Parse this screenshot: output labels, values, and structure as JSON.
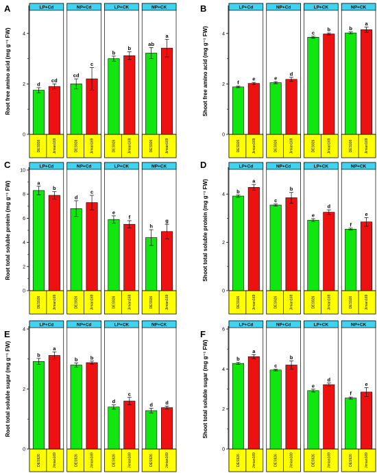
{
  "colors": {
    "header_fill": "#3fd3f0",
    "footer_fill": "#ffff00",
    "bar_colors": [
      "#11e611",
      "#ee1111"
    ],
    "bar_stroke": "#000000"
  },
  "chart_data": [
    {
      "type": "bar",
      "panel": "A",
      "ylabel": "Root free amino acid (mg g⁻¹ FW)",
      "ylim": [
        0,
        5
      ],
      "yticks": [
        0,
        2,
        4
      ],
      "groups": [
        "LP+Cd",
        "NP+Cd",
        "LP+CK",
        "NP+CK"
      ],
      "categories": [
        "DES926",
        "Jimian169"
      ],
      "values": [
        [
          1.75,
          1.9
        ],
        [
          2.0,
          2.2
        ],
        [
          3.0,
          3.12
        ],
        [
          3.22,
          3.42
        ]
      ],
      "errors": [
        [
          0.1,
          0.1
        ],
        [
          0.2,
          0.45
        ],
        [
          0.1,
          0.15
        ],
        [
          0.22,
          0.35
        ]
      ],
      "letters": [
        [
          "d",
          "cd"
        ],
        [
          "cd",
          "c"
        ],
        [
          "b",
          "b"
        ],
        [
          "ab",
          "a"
        ]
      ]
    },
    {
      "type": "bar",
      "panel": "B",
      "ylabel": "Shoot free amino acid (mg g⁻¹ FW)",
      "ylim": [
        0,
        5
      ],
      "yticks": [
        0,
        2,
        4
      ],
      "groups": [
        "LP+Cd",
        "NP+Cd",
        "LP+CK",
        "NP+CK"
      ],
      "categories": [
        "DES926",
        "Jimian169"
      ],
      "values": [
        [
          1.88,
          2.02
        ],
        [
          2.05,
          2.18
        ],
        [
          3.85,
          3.98
        ],
        [
          4.02,
          4.15
        ]
      ],
      "errors": [
        [
          0.03,
          0.04
        ],
        [
          0.04,
          0.08
        ],
        [
          0.04,
          0.04
        ],
        [
          0.04,
          0.1
        ]
      ],
      "letters": [
        [
          "f",
          "e"
        ],
        [
          "e",
          "d"
        ],
        [
          "c",
          "b"
        ],
        [
          "b",
          "a"
        ]
      ]
    },
    {
      "type": "bar",
      "panel": "C",
      "ylabel": "Root total soluble protein (mg g⁻¹ FW)",
      "ylim": [
        0,
        10
      ],
      "yticks": [
        0,
        2,
        4,
        6,
        8,
        10
      ],
      "groups": [
        "LP+Cd",
        "NP+Cd",
        "LP+CK",
        "NP+CK"
      ],
      "categories": [
        "DES926",
        "Jimian169"
      ],
      "values": [
        [
          8.3,
          7.9
        ],
        [
          6.8,
          7.3
        ],
        [
          5.9,
          5.5
        ],
        [
          4.4,
          4.9
        ]
      ],
      "errors": [
        [
          0.35,
          0.3
        ],
        [
          0.65,
          0.6
        ],
        [
          0.3,
          0.3
        ],
        [
          0.65,
          0.6
        ]
      ],
      "letters": [
        [
          "a",
          "b"
        ],
        [
          "d",
          "c"
        ],
        [
          "e",
          "f"
        ],
        [
          "h",
          "g"
        ]
      ]
    },
    {
      "type": "bar",
      "panel": "D",
      "ylabel": "Shoot total soluble protein (mg g⁻¹ FW)",
      "ylim": [
        0,
        5
      ],
      "yticks": [
        0,
        2,
        4
      ],
      "groups": [
        "LP+Cd",
        "NP+Cd",
        "LP+CK",
        "NP+CK"
      ],
      "categories": [
        "DES926",
        "Jimian169"
      ],
      "values": [
        [
          3.92,
          4.28
        ],
        [
          3.55,
          3.85
        ],
        [
          2.92,
          3.25
        ],
        [
          2.55,
          2.85
        ]
      ],
      "errors": [
        [
          0.05,
          0.12
        ],
        [
          0.04,
          0.22
        ],
        [
          0.06,
          0.1
        ],
        [
          0.04,
          0.18
        ]
      ],
      "letters": [
        [
          "b",
          "a"
        ],
        [
          "c",
          "b"
        ],
        [
          "e",
          "d"
        ],
        [
          "f",
          "e"
        ]
      ]
    },
    {
      "type": "bar",
      "panel": "E",
      "ylabel": "Root total soluble sugar (mg g⁻¹ FW)",
      "ylim": [
        0,
        4
      ],
      "yticks": [
        0,
        2,
        4
      ],
      "groups": [
        "LP+Cd",
        "NP+Cd",
        "LP+CK",
        "NP+CK"
      ],
      "categories": [
        "DES926",
        "Jimian169"
      ],
      "values": [
        [
          2.92,
          3.12
        ],
        [
          2.8,
          2.88
        ],
        [
          1.4,
          1.6
        ],
        [
          1.28,
          1.38
        ]
      ],
      "errors": [
        [
          0.1,
          0.12
        ],
        [
          0.07,
          0.05
        ],
        [
          0.07,
          0.12
        ],
        [
          0.08,
          0.05
        ]
      ],
      "letters": [
        [
          "b",
          "a"
        ],
        [
          "b",
          "b"
        ],
        [
          "d",
          "c"
        ],
        [
          "d",
          "d"
        ]
      ]
    },
    {
      "type": "bar",
      "panel": "F",
      "ylabel": "Shoot total soluble sugar (mg g⁻¹ FW)",
      "ylim": [
        0,
        6
      ],
      "yticks": [
        0,
        2,
        4,
        6
      ],
      "groups": [
        "LP+Cd",
        "NP+Cd",
        "LP+CK",
        "NP+CK"
      ],
      "categories": [
        "DES926",
        "Jimian169"
      ],
      "values": [
        [
          4.28,
          4.62
        ],
        [
          3.95,
          4.2
        ],
        [
          2.92,
          3.22
        ],
        [
          2.55,
          2.85
        ]
      ],
      "errors": [
        [
          0.05,
          0.1
        ],
        [
          0.04,
          0.2
        ],
        [
          0.07,
          0.08
        ],
        [
          0.05,
          0.22
        ]
      ],
      "letters": [
        [
          "b",
          "a"
        ],
        [
          "c",
          "b"
        ],
        [
          "e",
          "d"
        ],
        [
          "f",
          "e"
        ]
      ]
    }
  ]
}
